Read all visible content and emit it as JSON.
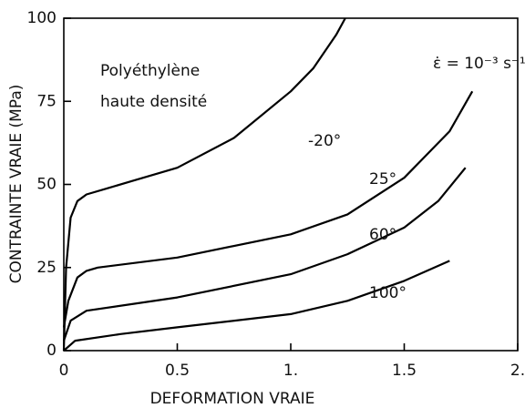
{
  "chart_data": {
    "type": "line",
    "xlabel": "DEFORMATION VRAIE",
    "ylabel": "CONTRAINTE VRAIE (MPa)",
    "annotations": [
      "Polyéthylène",
      "haute densité",
      "ε̇ = 10⁻³ s⁻¹"
    ],
    "xlim": [
      0,
      2
    ],
    "ylim": [
      0,
      100
    ],
    "xticks": [
      0,
      0.5,
      {
        "value": 1,
        "label": "1."
      },
      1.5,
      {
        "value": 2,
        "label": "2."
      }
    ],
    "yticks": [
      0,
      25,
      50,
      75,
      100
    ],
    "series": [
      {
        "name": "-20°",
        "color": "#000000",
        "x": [
          0,
          0.01,
          0.03,
          0.06,
          0.1,
          0.2,
          0.3,
          0.5,
          0.75,
          1.0,
          1.1,
          1.2,
          1.24
        ],
        "values": [
          0,
          25,
          40,
          45,
          47,
          49,
          51,
          55,
          64,
          78,
          85,
          95,
          100
        ]
      },
      {
        "name": "25°",
        "color": "#000000",
        "x": [
          0,
          0.02,
          0.06,
          0.1,
          0.15,
          0.5,
          1.0,
          1.25,
          1.5,
          1.7,
          1.8
        ],
        "values": [
          7,
          15,
          22,
          24,
          25,
          28,
          35,
          41,
          52,
          66,
          78
        ]
      },
      {
        "name": "60°",
        "color": "#000000",
        "x": [
          0,
          0.03,
          0.1,
          0.5,
          1.0,
          1.25,
          1.5,
          1.65,
          1.77
        ],
        "values": [
          3,
          9,
          12,
          16,
          23,
          29,
          37,
          45,
          55
        ]
      },
      {
        "name": "100°",
        "color": "#000000",
        "x": [
          0,
          0.05,
          0.25,
          0.5,
          1.0,
          1.25,
          1.5,
          1.7
        ],
        "values": [
          0,
          3,
          5,
          7,
          11,
          15,
          21,
          27
        ]
      }
    ]
  }
}
